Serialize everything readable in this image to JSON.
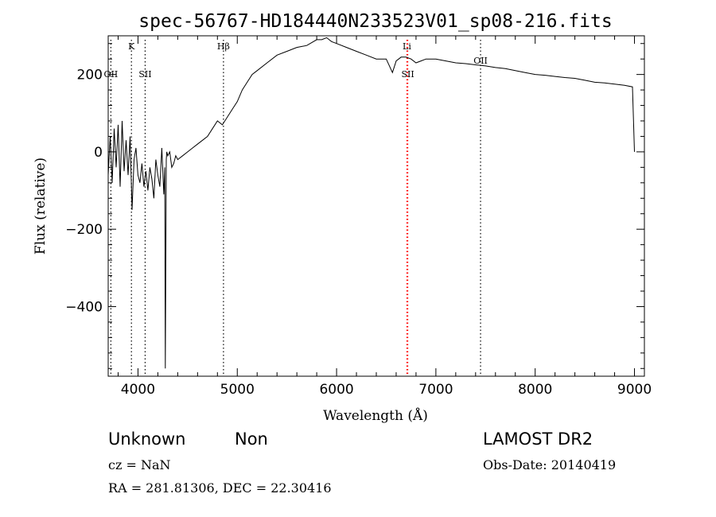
{
  "chart_data": {
    "type": "line",
    "title": "spec-56767-HD184440N233523V01_sp08-216.fits",
    "xlabel": "Wavelength (Å)",
    "ylabel": "Flux (relative)",
    "xlim": [
      3700,
      9100
    ],
    "ylim": [
      -580,
      300
    ],
    "xticks": [
      4000,
      5000,
      6000,
      7000,
      8000,
      9000
    ],
    "yticks": [
      -400,
      -200,
      0,
      200
    ],
    "grid": false,
    "line_color": "#000000",
    "series": [
      {
        "x": [
          3700,
          3720,
          3740,
          3760,
          3780,
          3800,
          3820,
          3840,
          3860,
          3880,
          3900,
          3920,
          3940,
          3960,
          3980,
          4000,
          4020,
          4040,
          4060,
          4080,
          4100,
          4120,
          4140,
          4160,
          4180,
          4200,
          4220,
          4240,
          4260,
          4270,
          4275,
          4280,
          4285,
          4290,
          4300,
          4320,
          4340,
          4360,
          4380,
          4400,
          4450,
          4500,
          4550,
          4600,
          4650,
          4700,
          4750,
          4800,
          4850,
          4900,
          4950,
          5000,
          5050,
          5100,
          5150,
          5200,
          5300,
          5400,
          5500,
          5600,
          5700,
          5800,
          5850,
          5900,
          5950,
          6000,
          6100,
          6200,
          6300,
          6400,
          6500,
          6563,
          6600,
          6650,
          6700,
          6750,
          6800,
          6850,
          6900,
          7000,
          7100,
          7200,
          7300,
          7400,
          7500,
          7600,
          7700,
          7800,
          7900,
          8000,
          8100,
          8200,
          8300,
          8400,
          8500,
          8600,
          8700,
          8800,
          8900,
          8980,
          9000
        ],
        "y": [
          -60,
          40,
          -80,
          60,
          -40,
          70,
          -90,
          80,
          -50,
          30,
          -60,
          40,
          -150,
          -20,
          10,
          -60,
          -80,
          -30,
          -90,
          -50,
          -100,
          -40,
          -70,
          -120,
          -20,
          -60,
          -90,
          10,
          -110,
          -40,
          -560,
          -300,
          -20,
          0,
          -10,
          0,
          -40,
          -30,
          -10,
          -20,
          -10,
          0,
          10,
          20,
          30,
          40,
          60,
          80,
          70,
          90,
          110,
          130,
          160,
          180,
          200,
          210,
          230,
          250,
          260,
          270,
          275,
          290,
          290,
          295,
          285,
          280,
          270,
          260,
          250,
          240,
          240,
          205,
          235,
          245,
          245,
          240,
          230,
          235,
          240,
          240,
          235,
          230,
          228,
          225,
          222,
          218,
          215,
          210,
          205,
          200,
          198,
          195,
          192,
          190,
          185,
          180,
          178,
          175,
          172,
          168,
          0
        ]
      }
    ],
    "spectral_lines": [
      {
        "label": "K",
        "x": 3934,
        "color": "#000000",
        "label_pos": "upper"
      },
      {
        "label": "OII",
        "x": 3727,
        "color": "#000000",
        "label_pos": "lower"
      },
      {
        "label": "SII",
        "x": 4072,
        "color": "#000000",
        "label_pos": "lower"
      },
      {
        "label": "Hβ",
        "x": 4861,
        "color": "#000000",
        "label_pos": "upper"
      },
      {
        "label": "Li",
        "x": 6708,
        "color": "#ff0000",
        "label_pos": "upper"
      },
      {
        "label": "SII",
        "x": 6717,
        "color": "#ff0000",
        "label_pos": "lower"
      },
      {
        "label": "OII",
        "x": 7450,
        "color": "#000000",
        "label_pos": "mid"
      }
    ]
  },
  "footer": {
    "object_class": "Unknown",
    "subclass": "Non",
    "survey": "LAMOST DR2",
    "cz": "cz = NaN",
    "obs_date": "Obs-Date: 20140419",
    "coords": "RA = 281.81306, DEC =  22.30416"
  }
}
